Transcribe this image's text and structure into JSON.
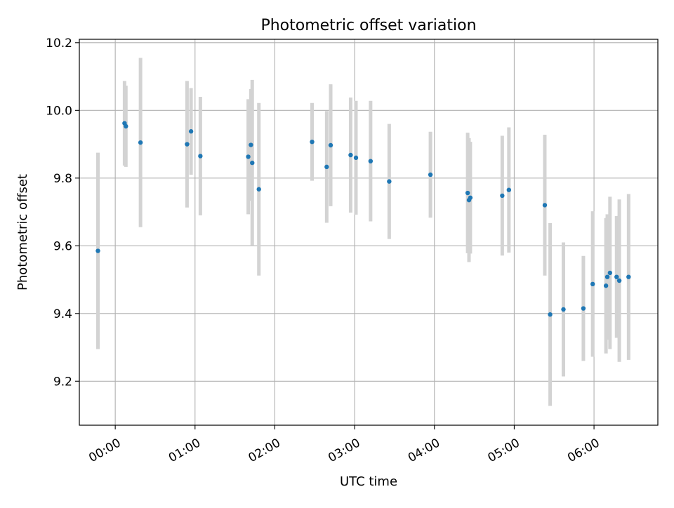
{
  "chart_data": {
    "type": "scatter",
    "title": "Photometric offset variation",
    "xlabel": "UTC time",
    "ylabel": "Photometric offset",
    "x_ticks": [
      "00:00",
      "01:00",
      "02:00",
      "03:00",
      "04:00",
      "05:00",
      "06:00"
    ],
    "y_ticks": [
      "9.2",
      "9.4",
      "9.6",
      "9.8",
      "10.0",
      "10.2"
    ],
    "xlim": [
      "23:33",
      "06:48"
    ],
    "ylim": [
      9.07,
      10.21
    ],
    "grid": true,
    "colors": {
      "point": "#1f77b4",
      "errorbar": "#d3d3d3",
      "grid": "#b0b0b0"
    },
    "points": [
      {
        "t": "23:47",
        "y": 9.585,
        "err": 0.29
      },
      {
        "t": "00:07",
        "y": 9.962,
        "err": 0.125
      },
      {
        "t": "00:08",
        "y": 9.953,
        "err": 0.12
      },
      {
        "t": "00:19",
        "y": 9.905,
        "err": 0.25
      },
      {
        "t": "00:54",
        "y": 9.9,
        "err": 0.187
      },
      {
        "t": "00:57",
        "y": 9.938,
        "err": 0.128
      },
      {
        "t": "01:04",
        "y": 9.865,
        "err": 0.175
      },
      {
        "t": "01:40",
        "y": 9.863,
        "err": 0.17
      },
      {
        "t": "01:42",
        "y": 9.898,
        "err": 0.165
      },
      {
        "t": "01:43",
        "y": 9.845,
        "err": 0.245
      },
      {
        "t": "01:48",
        "y": 9.767,
        "err": 0.255
      },
      {
        "t": "02:28",
        "y": 9.907,
        "err": 0.115
      },
      {
        "t": "02:39",
        "y": 9.833,
        "err": 0.165
      },
      {
        "t": "02:42",
        "y": 9.897,
        "err": 0.18
      },
      {
        "t": "02:57",
        "y": 9.868,
        "err": 0.17
      },
      {
        "t": "03:01",
        "y": 9.86,
        "err": 0.168
      },
      {
        "t": "03:12",
        "y": 9.85,
        "err": 0.178
      },
      {
        "t": "03:26",
        "y": 9.79,
        "err": 0.17
      },
      {
        "t": "03:57",
        "y": 9.81,
        "err": 0.127
      },
      {
        "t": "04:25",
        "y": 9.756,
        "err": 0.178
      },
      {
        "t": "04:26",
        "y": 9.735,
        "err": 0.183
      },
      {
        "t": "04:27",
        "y": 9.742,
        "err": 0.165
      },
      {
        "t": "04:51",
        "y": 9.748,
        "err": 0.177
      },
      {
        "t": "04:56",
        "y": 9.765,
        "err": 0.185
      },
      {
        "t": "05:23",
        "y": 9.72,
        "err": 0.208
      },
      {
        "t": "05:27",
        "y": 9.397,
        "err": 0.27
      },
      {
        "t": "05:37",
        "y": 9.412,
        "err": 0.198
      },
      {
        "t": "05:52",
        "y": 9.415,
        "err": 0.155
      },
      {
        "t": "05:59",
        "y": 9.487,
        "err": 0.215
      },
      {
        "t": "06:09",
        "y": 9.482,
        "err": 0.2
      },
      {
        "t": "06:10",
        "y": 9.508,
        "err": 0.185
      },
      {
        "t": "06:12",
        "y": 9.52,
        "err": 0.225
      },
      {
        "t": "06:17",
        "y": 9.508,
        "err": 0.18
      },
      {
        "t": "06:19",
        "y": 9.497,
        "err": 0.24
      },
      {
        "t": "06:26",
        "y": 9.508,
        "err": 0.245
      }
    ]
  }
}
